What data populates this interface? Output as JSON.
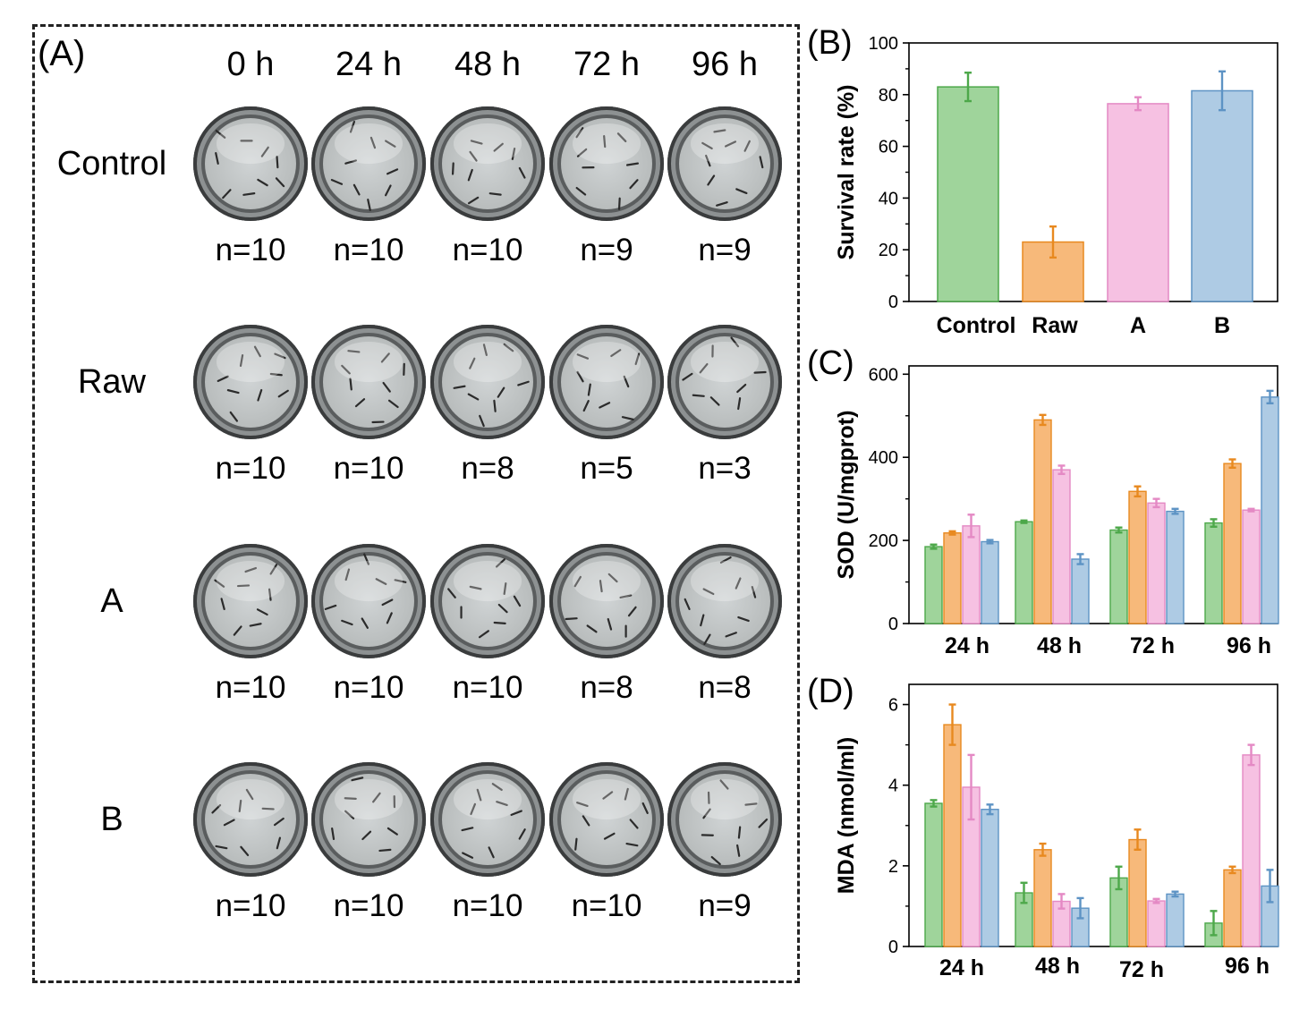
{
  "panelA": {
    "letter": "(A)",
    "times": [
      "0 h",
      "24 h",
      "48 h",
      "72 h",
      "96 h"
    ],
    "rows": [
      {
        "label": "Control",
        "counts": [
          "n=10",
          "n=10",
          "n=10",
          "n=9",
          "n=9"
        ]
      },
      {
        "label": "Raw",
        "counts": [
          "n=10",
          "n=10",
          "n=8",
          "n=5",
          "n=3"
        ]
      },
      {
        "label": "A",
        "counts": [
          "n=10",
          "n=10",
          "n=10",
          "n=8",
          "n=8"
        ]
      },
      {
        "label": "B",
        "counts": [
          "n=10",
          "n=10",
          "n=10",
          "n=10",
          "n=9"
        ]
      }
    ]
  },
  "colors": {
    "Control": "#9fd49b",
    "Raw": "#f7b97a",
    "A": "#f6c1e2",
    "B": "#aecbe4",
    "Control_stroke": "#4da84a",
    "Raw_stroke": "#e8891f",
    "A_stroke": "#e489c4",
    "B_stroke": "#5d93c4"
  },
  "chart_data": [
    {
      "panel": "(B)",
      "type": "bar",
      "categories": [
        "Control",
        "Raw",
        "A",
        "B"
      ],
      "values": [
        83,
        23,
        76.5,
        81.5
      ],
      "errors": [
        5.5,
        6,
        2.5,
        7.5
      ],
      "ylabel": "Survival rate (%)",
      "ylim": [
        0,
        100
      ],
      "yticks": [
        "0",
        "20",
        "40",
        "60",
        "80",
        "100"
      ]
    },
    {
      "panel": "(C)",
      "type": "bar",
      "categories": [
        "24 h",
        "48 h",
        "72 h",
        "96 h"
      ],
      "series": [
        {
          "values": [
            185,
            245,
            225,
            242
          ],
          "errors": [
            5,
            3,
            6,
            9
          ]
        },
        {
          "values": [
            218,
            490,
            318,
            385
          ],
          "errors": [
            4,
            12,
            12,
            10
          ]
        },
        {
          "values": [
            235,
            370,
            290,
            273
          ],
          "errors": [
            27,
            10,
            10,
            3
          ]
        },
        {
          "values": [
            197,
            155,
            270,
            545
          ],
          "errors": [
            4,
            12,
            6,
            15
          ]
        }
      ],
      "ylabel": "SOD (U/mgprot)",
      "ylim": [
        0,
        620
      ],
      "yticks": [
        "0",
        "200",
        "400",
        "600"
      ]
    },
    {
      "panel": "(D)",
      "type": "bar",
      "categories": [
        "24 h",
        "48 h",
        "72 h",
        "96 h"
      ],
      "series": [
        {
          "values": [
            3.55,
            1.33,
            1.7,
            0.58
          ],
          "errors": [
            0.08,
            0.25,
            0.28,
            0.3
          ]
        },
        {
          "values": [
            5.5,
            2.4,
            2.65,
            1.9
          ],
          "errors": [
            0.5,
            0.15,
            0.25,
            0.08
          ]
        },
        {
          "values": [
            3.95,
            1.12,
            1.13,
            4.75
          ],
          "errors": [
            0.8,
            0.18,
            0.05,
            0.25
          ]
        },
        {
          "values": [
            3.4,
            0.95,
            1.3,
            1.5
          ],
          "errors": [
            0.12,
            0.25,
            0.06,
            0.4
          ]
        }
      ],
      "ylabel": "MDA (nmol/ml)",
      "ylim": [
        0,
        6.5
      ],
      "yticks": [
        "0",
        "2",
        "4",
        "6"
      ]
    }
  ]
}
